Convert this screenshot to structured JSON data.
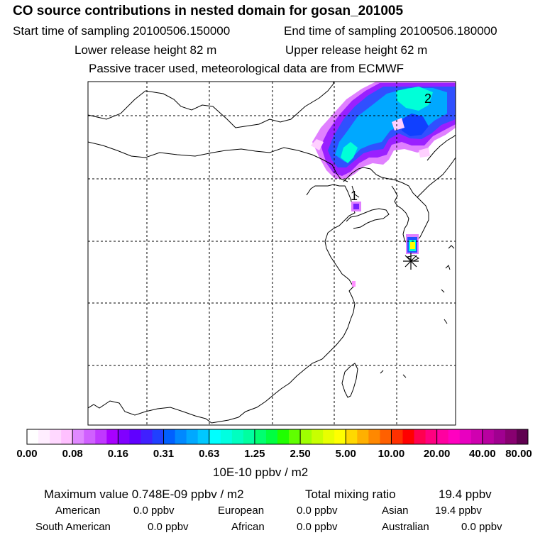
{
  "header": {
    "title": "CO  source contributions in nested domain for gosan_201005",
    "start_label": "Start time of sampling 20100506.150000",
    "end_label": "End time of sampling 20100506.180000",
    "lower_label": "Lower release height   82 m",
    "upper_label": "Upper release height   62 m",
    "tracer_label": "Passive tracer used, meteorological data are from ECMWF"
  },
  "chart_data": {
    "type": "heatmap",
    "title": "CO  source contributions in nested domain for gosan_201005",
    "colorbar": {
      "unit_label": "10E-10 ppbv / m2",
      "tick_labels": [
        "0.00",
        "0.08",
        "0.16",
        "0.31",
        "0.63",
        "1.25",
        "2.50",
        "5.00",
        "10.00",
        "20.00",
        "40.00",
        "80.00"
      ],
      "tick_values": [
        0.0,
        0.08,
        0.16,
        0.31,
        0.63,
        1.25,
        2.5,
        5.0,
        10.0,
        20.0,
        40.0,
        80.0
      ],
      "colors": [
        "#ffffff",
        "#ffeeff",
        "#ffd8ff",
        "#ffc0ff",
        "#e088ff",
        "#d060ff",
        "#c038ff",
        "#a800ff",
        "#8000ff",
        "#6000ff",
        "#4020ff",
        "#2040ff",
        "#0060ff",
        "#0088ff",
        "#00a8ff",
        "#00c8ff",
        "#00ffff",
        "#00ffe0",
        "#00ffc0",
        "#00ffa0",
        "#00ff70",
        "#00ff40",
        "#20ff00",
        "#60ff00",
        "#a0ff00",
        "#c8ff00",
        "#e8ff00",
        "#ffff00",
        "#ffd800",
        "#ffb000",
        "#ff8800",
        "#ff6000",
        "#ff3000",
        "#ff0000",
        "#ff0050",
        "#ff0080",
        "#ff00a0",
        "#ff00c0",
        "#e800c0",
        "#d000b0",
        "#b800a0",
        "#a00090",
        "#880070",
        "#600050"
      ]
    },
    "annotations": [
      "1",
      "2"
    ],
    "plumes": [
      {
        "name": "northern-plume",
        "level": "0.63-1.25",
        "color": "#00ffd0"
      },
      {
        "name": "release-point-plume",
        "level": "5.00-10.00",
        "color": "#ffff00"
      }
    ]
  },
  "stats": {
    "max_label": "Maximum value  0.748E-09 ppbv / m2",
    "total_label": "Total mixing ratio",
    "total_value": "19.4 ppbv",
    "american_label": "American",
    "american_value": "0.0 ppbv",
    "european_label": "European",
    "european_value": "0.0 ppbv",
    "asian_label": "Asian",
    "asian_value": "19.4 ppbv",
    "south_american_label": "South American",
    "south_american_value": "0.0 ppbv",
    "african_label": "African",
    "african_value": "0.0 ppbv",
    "australian_label": "Australian",
    "australian_value": "0.0 ppbv"
  }
}
